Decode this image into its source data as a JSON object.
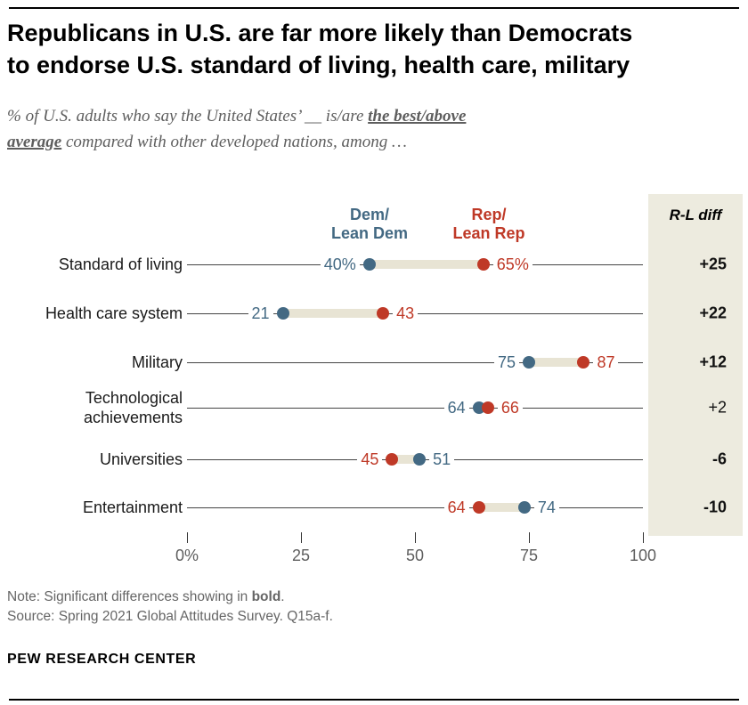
{
  "title": {
    "line1": "Republicans in U.S. are far more likely than Democrats",
    "line2": "to endorse U.S. standard of living, health care, military"
  },
  "subtitle": {
    "l1a": "% of U.S. adults who say the United States’ __ is/are ",
    "l1b": "the best/above",
    "l2a": "average",
    "l2b": " compared with other developed nations, among …"
  },
  "legend": {
    "dem_line1": "Dem/",
    "dem_line2": "Lean Dem",
    "rep_line1": "Rep/",
    "rep_line2": "Lean Rep"
  },
  "chart_data": {
    "type": "dumbbell-dot",
    "title": "Republicans in U.S. are far more likely than Democrats to endorse U.S. standard of living, health care, military",
    "categories": [
      "Standard of living",
      "Health care system",
      "Military",
      "Technological\nachievements",
      "Universities",
      "Entertainment"
    ],
    "series": [
      {
        "name": "Dem/Lean Dem",
        "values": [
          40,
          21,
          75,
          64,
          51,
          74
        ]
      },
      {
        "name": "Rep/Lean Rep",
        "values": [
          65,
          43,
          87,
          66,
          45,
          64
        ]
      }
    ],
    "dem_labels": [
      "40%",
      "21",
      "75",
      "64",
      "51",
      "74"
    ],
    "rep_labels": [
      "65%",
      "43",
      "87",
      "66",
      "45",
      "64"
    ],
    "diff": [
      "+25",
      "+22",
      "+12",
      "+2",
      "-6",
      "-10"
    ],
    "diff_bold": [
      true,
      true,
      true,
      false,
      true,
      true
    ],
    "diff_column_label": "R-L diff",
    "x_ticks": [
      "0%",
      "25",
      "50",
      "75",
      "100"
    ],
    "x_tick_values": [
      0,
      25,
      50,
      75,
      100
    ],
    "xlim": [
      0,
      100
    ],
    "grid": false,
    "legend_position": "top",
    "colors": {
      "dem": "#436983",
      "rep": "#BF3927",
      "connector": "#E8E4D4",
      "panel": "#EDEBDF",
      "row_line": "#444444"
    }
  },
  "notes": {
    "note_prefix": "Note: Significant differences showing in ",
    "note_bold": "bold",
    "note_suffix": ".",
    "source": "Source: Spring 2021 Global Attitudes Survey. Q15a-f.",
    "brand": "PEW RESEARCH CENTER"
  }
}
